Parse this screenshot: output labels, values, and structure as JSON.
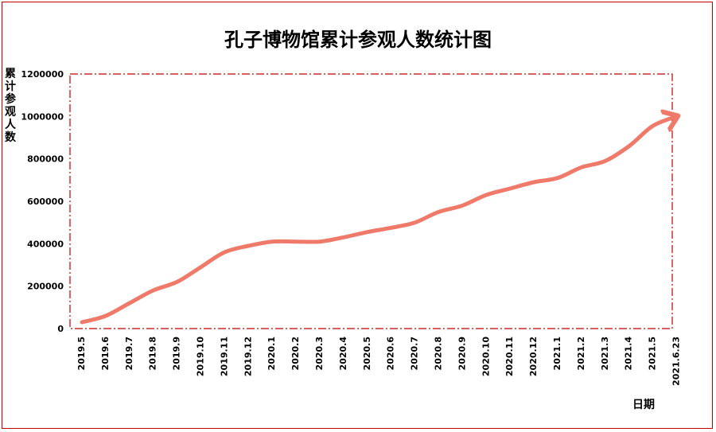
{
  "chart_data": {
    "type": "line",
    "title": "孔子博物馆累计参观人数统计图",
    "xlabel": "日期",
    "ylabel": "累计参观人数",
    "ylim": [
      0,
      1200000
    ],
    "yticks": [
      "0",
      "200000",
      "400000",
      "600000",
      "800000",
      "1000000",
      "1200000"
    ],
    "categories": [
      "2019.5",
      "2019.6",
      "2019.7",
      "2019.8",
      "2019.9",
      "2019.10",
      "2019.11",
      "2019.12",
      "2020.1",
      "2020.2",
      "2020.3",
      "2020.4",
      "2020.5",
      "2020.6",
      "2020.7",
      "2020.8",
      "2020.9",
      "2020.10",
      "2020.11",
      "2020.12",
      "2021.1",
      "2021.2",
      "2021.3",
      "2021.4",
      "2021.5",
      "2021.6.23"
    ],
    "values": [
      30000,
      60000,
      120000,
      180000,
      220000,
      290000,
      360000,
      390000,
      410000,
      410000,
      410000,
      430000,
      455000,
      475000,
      500000,
      550000,
      580000,
      630000,
      660000,
      690000,
      710000,
      760000,
      790000,
      860000,
      955000,
      1000000
    ],
    "colors": {
      "line": "#f07a6a",
      "frame": "#c00000"
    },
    "grid": false
  }
}
